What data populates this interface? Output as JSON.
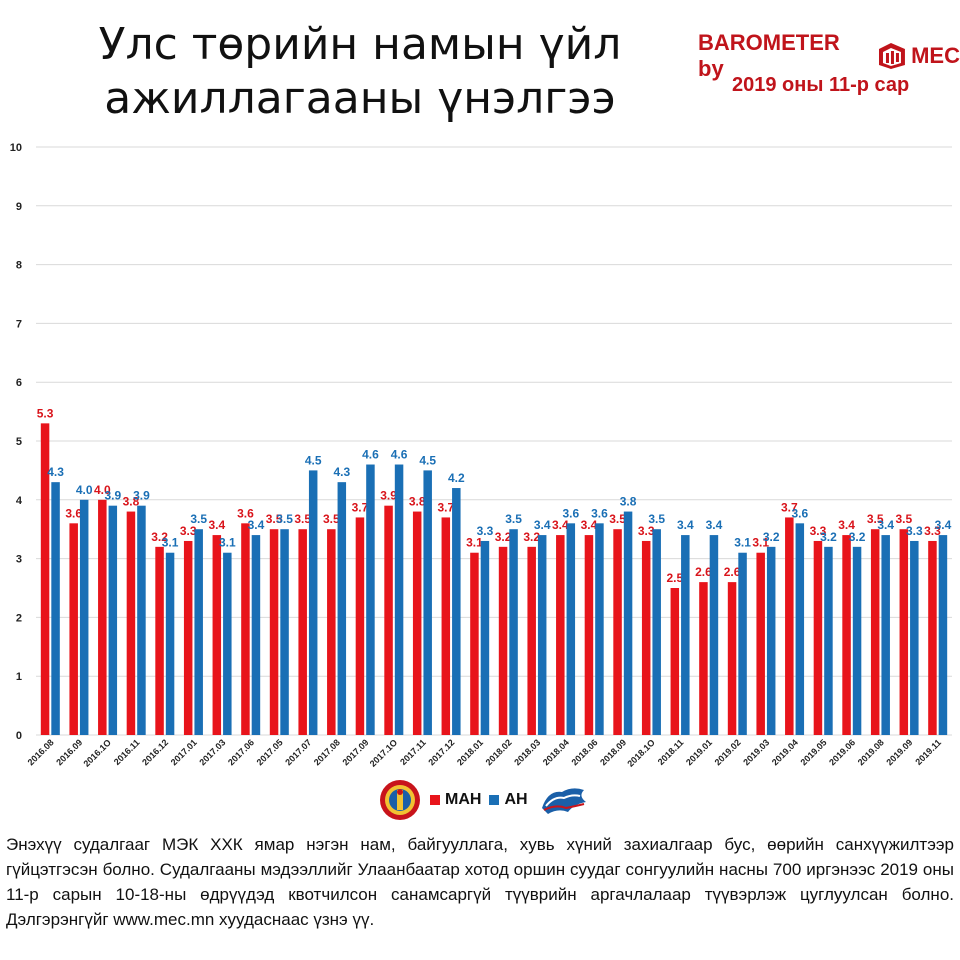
{
  "header": {
    "title_line1": "Улс төрийн намын үйл",
    "title_line2": "ажиллагааны үнэлгээ",
    "brand_left": "BAROMETER by",
    "brand_right": "MEC",
    "subtitle": "2019 оны 11-р сар"
  },
  "legend": {
    "items": [
      {
        "label": "МАН",
        "color": "#e8141b"
      },
      {
        "label": "АН",
        "color": "#1a6fb5"
      }
    ]
  },
  "footnote": "Энэхүү судалгааг МЭК ХХК ямар нэгэн нам, байгууллага, хувь хүний захиалгаар бус, өөрийн санхүүжилтээр гүйцэтгэсэн болно. Судалгааны мэдээллийг Улаанбаатар хотод оршин суудаг сонгуулийн насны 700 иргэнээс 2019 оны 11-р сарын 10-18-ны өдрүүдэд квотчилсон санамсаргүй түүврийн аргачлалаар түүвэрлэж цуглуулсан болно. Дэлгэрэнгүйг www.mec.mn хуудаснаас үзнэ үү.",
  "chart_data": {
    "type": "bar",
    "categories": [
      "2016.08",
      "2016.09",
      "2016.10",
      "2016.11",
      "2016.12",
      "2017.01",
      "2017.03",
      "2017.06",
      "2017.05",
      "2017.07",
      "2017.08",
      "2017.09",
      "2017.10",
      "2017.11",
      "2017.12",
      "2018.01",
      "2018.02",
      "2018.03",
      "2018.04",
      "2018.06",
      "2018.09",
      "2018.10",
      "2018.11",
      "2019.01",
      "2019.02",
      "2019.03",
      "2019.04",
      "2019.05",
      "2019.06",
      "2019.08",
      "2019.09",
      "2019.11"
    ],
    "category_labels": [
      "2016.08",
      "2016.09",
      "2016.1O",
      "2016.11",
      "2016.12",
      "2017.01",
      "2017.03",
      "2017.06",
      "2017.05",
      "2017.07",
      "2017.08",
      "2017.09",
      "2017.1O",
      "2017.11",
      "2017.12",
      "2018.01",
      "2018.02",
      "2018.03",
      "2018.04",
      "2018.06",
      "2018.09",
      "2018.1O",
      "2018.11",
      "2019.01",
      "2019.02",
      "2019.03",
      "2019.04",
      "2019.05",
      "2019.06",
      "2019.08",
      "2019.09",
      "2019.11"
    ],
    "series": [
      {
        "name": "МАН",
        "color": "#e8141b",
        "label_color": "#d9141b",
        "values": [
          5.3,
          3.6,
          4.0,
          3.8,
          3.2,
          3.3,
          3.4,
          3.6,
          3.5,
          3.5,
          3.5,
          3.7,
          3.9,
          3.8,
          3.7,
          3.1,
          3.2,
          3.2,
          3.4,
          3.4,
          3.5,
          3.3,
          2.5,
          2.6,
          2.6,
          3.1,
          3.7,
          3.3,
          3.4,
          3.5,
          3.5,
          3.3
        ]
      },
      {
        "name": "АН",
        "color": "#1a6fb5",
        "label_color": "#1a6fb5",
        "values": [
          4.3,
          4.0,
          3.9,
          3.9,
          3.1,
          3.5,
          3.1,
          3.4,
          3.5,
          4.5,
          4.3,
          4.6,
          4.6,
          4.5,
          4.2,
          3.3,
          3.5,
          3.4,
          3.6,
          3.6,
          3.8,
          3.5,
          3.4,
          3.4,
          3.1,
          3.2,
          3.6,
          3.2,
          3.2,
          3.4,
          3.3,
          3.4
        ]
      }
    ],
    "yticks": [
      0,
      1,
      2,
      3,
      4,
      5,
      6,
      7,
      8,
      9,
      10
    ],
    "ylim": [
      0,
      10
    ],
    "grid": true,
    "legend_position": "bottom-center",
    "value_decimals": 1
  }
}
